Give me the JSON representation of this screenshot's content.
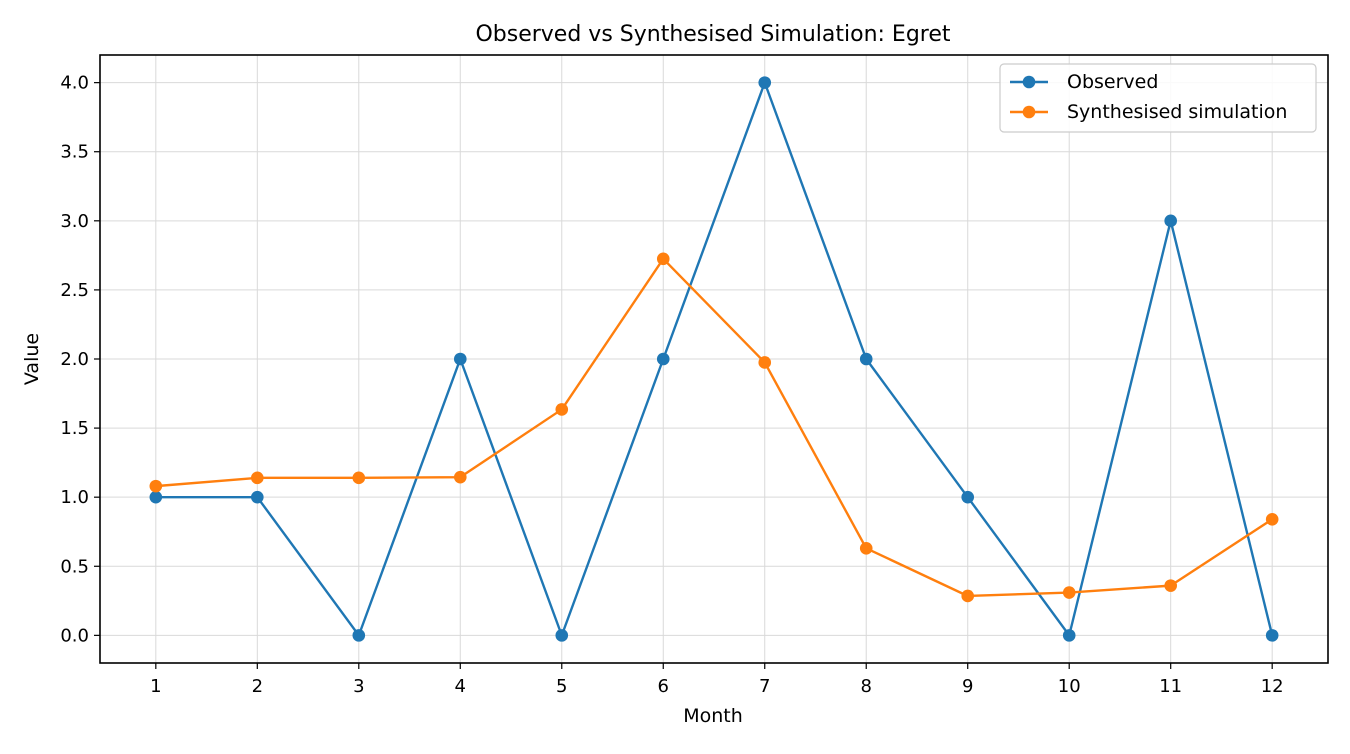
{
  "chart_data": {
    "type": "line",
    "title": "Observed vs Synthesised Simulation: Egret",
    "xlabel": "Month",
    "ylabel": "Value",
    "x": [
      1,
      2,
      3,
      4,
      5,
      6,
      7,
      8,
      9,
      10,
      11,
      12
    ],
    "xticks": [
      "1",
      "2",
      "3",
      "4",
      "5",
      "6",
      "7",
      "8",
      "9",
      "10",
      "11",
      "12"
    ],
    "yticks": [
      "0.0",
      "0.5",
      "1.0",
      "1.5",
      "2.0",
      "2.5",
      "3.0",
      "3.5",
      "4.0"
    ],
    "xlim": [
      0.45,
      12.55
    ],
    "ylim": [
      -0.2,
      4.2
    ],
    "grid": true,
    "legend_position": "top-right",
    "series": [
      {
        "name": "Observed",
        "color": "#1f77b4",
        "marker": "circle",
        "values": [
          1,
          1,
          0,
          2,
          0,
          2,
          4,
          2,
          1,
          0,
          3,
          0
        ]
      },
      {
        "name": "Synthesised simulation",
        "color": "#ff7f0e",
        "marker": "circle",
        "values": [
          1.08,
          1.14,
          1.14,
          1.145,
          1.635,
          2.725,
          1.975,
          0.63,
          0.285,
          0.31,
          0.36,
          0.84
        ]
      }
    ]
  }
}
